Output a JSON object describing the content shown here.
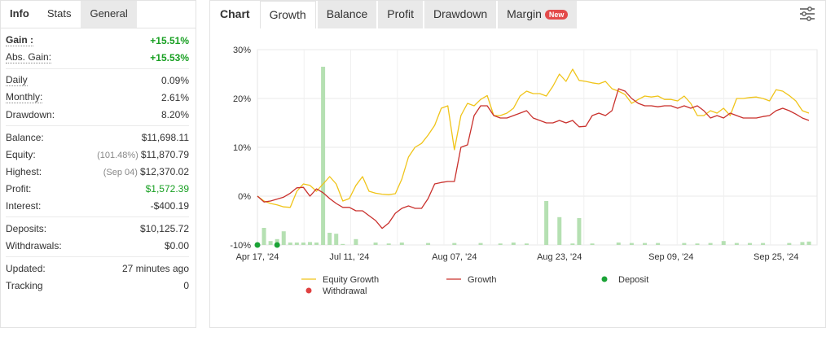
{
  "left_tabs": [
    {
      "label": "Info",
      "active": true
    },
    {
      "label": "Stats",
      "active": false
    },
    {
      "label": "General",
      "active": false
    }
  ],
  "stats": {
    "gain": {
      "label": "Gain :",
      "value": "+15.51%"
    },
    "abs_gain": {
      "label": "Abs. Gain:",
      "value": "+15.53%"
    },
    "daily": {
      "label": "Daily",
      "value": "0.09%"
    },
    "monthly": {
      "label": "Monthly:",
      "value": "2.61%"
    },
    "drawdown": {
      "label": "Drawdown:",
      "value": "8.20%"
    },
    "balance": {
      "label": "Balance:",
      "value": "$11,698.11"
    },
    "equity": {
      "label": "Equity:",
      "note": "(101.48%)",
      "value": "$11,870.79"
    },
    "highest": {
      "label": "Highest:",
      "note": "(Sep 04)",
      "value": "$12,370.02"
    },
    "profit": {
      "label": "Profit:",
      "value": "$1,572.39"
    },
    "interest": {
      "label": "Interest:",
      "value": "-$400.19"
    },
    "deposits": {
      "label": "Deposits:",
      "value": "$10,125.72"
    },
    "withdrawals": {
      "label": "Withdrawals:",
      "value": "$0.00"
    },
    "updated": {
      "label": "Updated:",
      "value": "27 minutes ago"
    },
    "tracking": {
      "label": "Tracking",
      "value": "0"
    }
  },
  "right_tabs": {
    "chart_label": "Chart",
    "tabs": [
      {
        "label": "Growth",
        "active": true
      },
      {
        "label": "Balance",
        "active": false
      },
      {
        "label": "Profit",
        "active": false
      },
      {
        "label": "Drawdown",
        "active": false
      },
      {
        "label": "Margin",
        "active": false
      }
    ],
    "margin_badge": "New"
  },
  "icons": {
    "settings": "sliders-icon"
  },
  "colors": {
    "equity_growth": "#f0c419",
    "growth": "#c9302c",
    "deposit": "#1aa336",
    "withdrawal": "#e04040",
    "bars": "#b5e0b2",
    "gain_green": "#19a023"
  },
  "chart_data": {
    "type": "line",
    "ylim": [
      -10,
      30
    ],
    "yticks": [
      "30%",
      "20%",
      "10%",
      "0%",
      "-10%"
    ],
    "ytick_values": [
      30,
      20,
      10,
      0,
      -10
    ],
    "xtick_labels": [
      "Apr 17, '24",
      "Jul 11, '24",
      "Aug 07, '24",
      "Aug 23, '24",
      "Sep 09, '24",
      "Sep 25, '24"
    ],
    "xtick_index": [
      0,
      14,
      30,
      46,
      63,
      79
    ],
    "n_points": 85,
    "series": [
      {
        "name": "Equity Growth",
        "values": [
          0,
          -1.0,
          -1.5,
          -1.8,
          -2.2,
          -2.3,
          1.0,
          2.5,
          2.2,
          1.0,
          2.5,
          4.0,
          2.5,
          -1.0,
          -0.5,
          2.2,
          4.0,
          1.0,
          0.6,
          0.4,
          0.3,
          0.5,
          3.5,
          8.0,
          10.0,
          10.8,
          12.5,
          14.5,
          18.0,
          18.5,
          9.5,
          16.5,
          19.0,
          18.5,
          19.8,
          20.6,
          16.5,
          16.5,
          17.0,
          18.0,
          20.5,
          21.5,
          21.0,
          21.0,
          20.5,
          22.5,
          25.0,
          23.5,
          26.0,
          23.7,
          23.5,
          23.2,
          23.0,
          23.5,
          22.0,
          21.5,
          20.8,
          19.0,
          19.8,
          20.5,
          20.3,
          20.5,
          19.8,
          19.8,
          19.5,
          20.5,
          19.0,
          16.5,
          16.5,
          17.5,
          17.0,
          18.0,
          16.5,
          20.0,
          20.0,
          20.2,
          20.3,
          20.0,
          19.5,
          21.8,
          21.5,
          20.6,
          19.5,
          17.5,
          17.0
        ]
      },
      {
        "name": "Growth",
        "values": [
          0,
          -1.2,
          -1.0,
          -0.6,
          -0.2,
          0.6,
          1.7,
          1.8,
          0.0,
          1.5,
          0.7,
          -0.5,
          -1.5,
          -2.3,
          -2.3,
          -3.0,
          -3.0,
          -4.0,
          -5.0,
          -6.6,
          -5.5,
          -3.5,
          -2.5,
          -2.0,
          -2.5,
          -2.5,
          -0.5,
          2.5,
          2.8,
          3.0,
          3.0,
          10.0,
          10.5,
          16.5,
          18.5,
          18.5,
          16.5,
          16.0,
          16.0,
          16.5,
          17.0,
          17.5,
          16.0,
          15.5,
          15.0,
          15.0,
          15.5,
          15.0,
          15.5,
          14.2,
          14.3,
          16.5,
          17.0,
          16.5,
          17.5,
          22.0,
          21.5,
          20.0,
          19.0,
          18.5,
          18.5,
          18.3,
          18.5,
          18.5,
          18.0,
          18.5,
          18.0,
          18.5,
          17.5,
          16.0,
          16.5,
          16.0,
          17.0,
          16.5,
          16.0,
          16.0,
          16.0,
          16.3,
          16.5,
          17.5,
          18.0,
          17.5,
          16.8,
          16.0,
          15.5
        ]
      }
    ],
    "bars": [
      {
        "i": 0,
        "h": 0.5
      },
      {
        "i": 1,
        "h": 3.5
      },
      {
        "i": 2,
        "h": 0.8
      },
      {
        "i": 3,
        "h": 1.2
      },
      {
        "i": 4,
        "h": 2.8
      },
      {
        "i": 5,
        "h": 0.5
      },
      {
        "i": 6,
        "h": 0.5
      },
      {
        "i": 7,
        "h": 0.5
      },
      {
        "i": 8,
        "h": 0.6
      },
      {
        "i": 9,
        "h": 0.5
      },
      {
        "i": 10,
        "h": 36.5
      },
      {
        "i": 11,
        "h": 2.5
      },
      {
        "i": 12,
        "h": 2.3
      },
      {
        "i": 13,
        "h": 0.2
      },
      {
        "i": 15,
        "h": 1.2
      },
      {
        "i": 18,
        "h": 0.5
      },
      {
        "i": 20,
        "h": 0.3
      },
      {
        "i": 22,
        "h": 0.5
      },
      {
        "i": 26,
        "h": 0.4
      },
      {
        "i": 30,
        "h": 0.4
      },
      {
        "i": 34,
        "h": 0.4
      },
      {
        "i": 37,
        "h": 0.3
      },
      {
        "i": 39,
        "h": 0.5
      },
      {
        "i": 41,
        "h": 0.3
      },
      {
        "i": 44,
        "h": 9.0
      },
      {
        "i": 46,
        "h": 5.7
      },
      {
        "i": 48,
        "h": 0.3
      },
      {
        "i": 49,
        "h": 5.5
      },
      {
        "i": 51,
        "h": 0.3
      },
      {
        "i": 55,
        "h": 0.5
      },
      {
        "i": 57,
        "h": 0.4
      },
      {
        "i": 59,
        "h": 0.4
      },
      {
        "i": 61,
        "h": 0.4
      },
      {
        "i": 65,
        "h": 0.4
      },
      {
        "i": 67,
        "h": 0.3
      },
      {
        "i": 69,
        "h": 0.4
      },
      {
        "i": 71,
        "h": 0.8
      },
      {
        "i": 73,
        "h": 0.4
      },
      {
        "i": 75,
        "h": 0.4
      },
      {
        "i": 77,
        "h": 0.4
      },
      {
        "i": 81,
        "h": 0.4
      },
      {
        "i": 83,
        "h": 0.6
      },
      {
        "i": 84,
        "h": 0.7
      }
    ],
    "deposit_markers": [
      0,
      3
    ],
    "legend": [
      {
        "name": "Equity Growth",
        "kind": "line",
        "color": "#f0c419"
      },
      {
        "name": "Growth",
        "kind": "line",
        "color": "#c9302c"
      },
      {
        "name": "Deposit",
        "kind": "dot",
        "color": "#1aa336"
      },
      {
        "name": "Withdrawal",
        "kind": "dot",
        "color": "#e04040"
      }
    ]
  }
}
